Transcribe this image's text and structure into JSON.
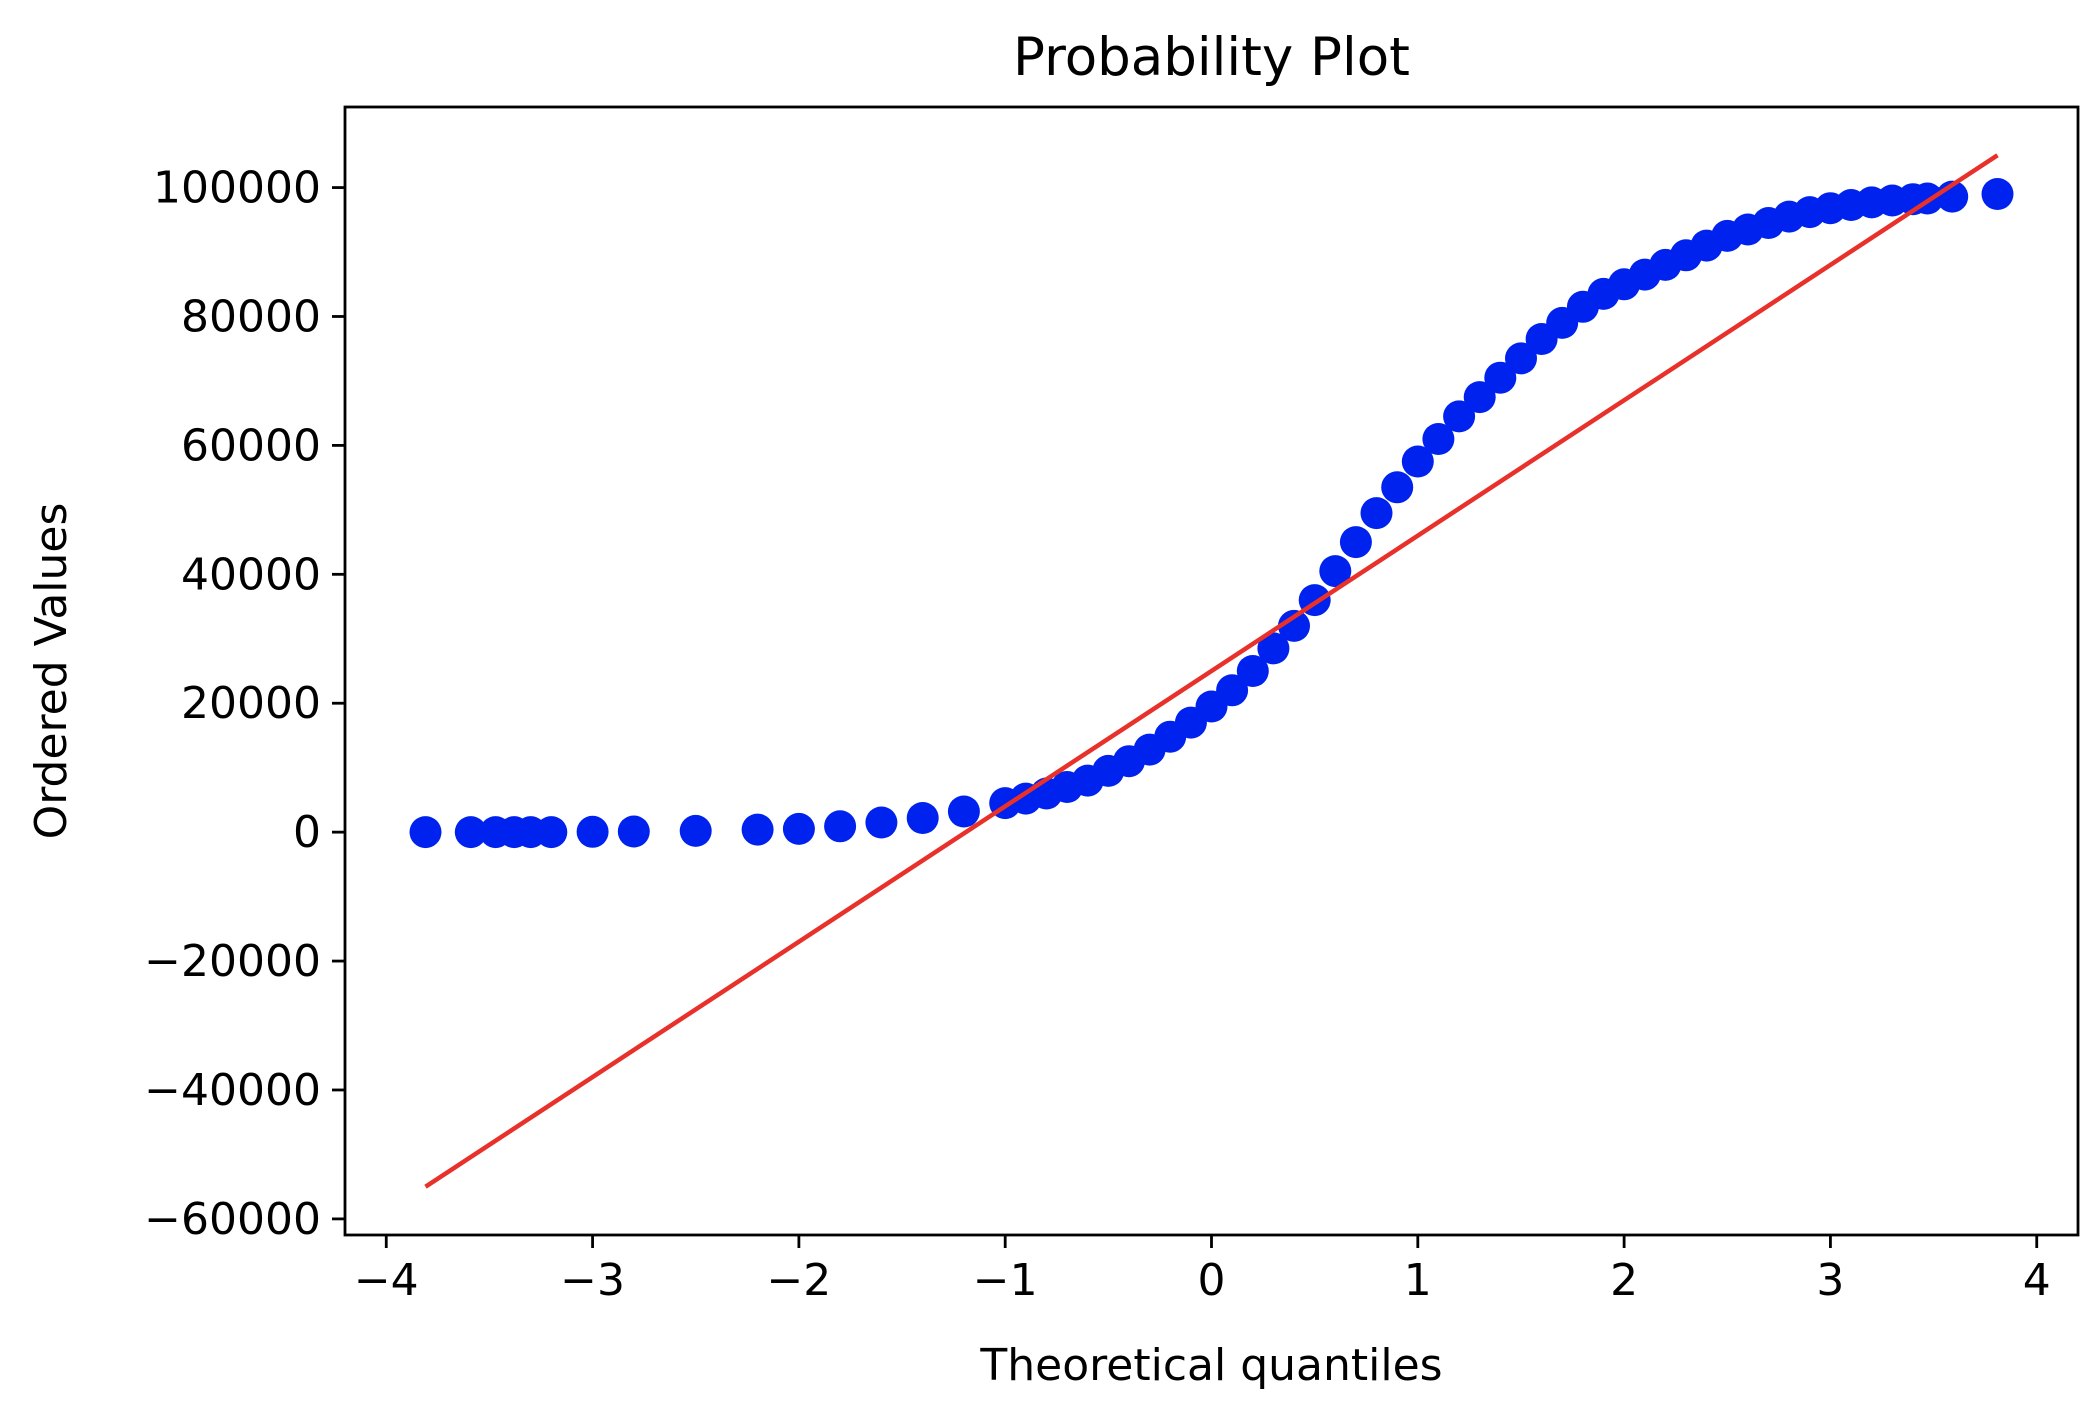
{
  "chart_data": {
    "type": "scatter",
    "title": "Probability Plot",
    "xlabel": "Theoretical quantiles",
    "ylabel": "Ordered Values",
    "xlim": [
      -4.2,
      4.2
    ],
    "ylim": [
      -62500,
      112500
    ],
    "x_ticks": [
      -4,
      -3,
      -2,
      -1,
      0,
      1,
      2,
      3,
      4
    ],
    "x_tick_labels": [
      "−4",
      "−3",
      "−2",
      "−1",
      "0",
      "1",
      "2",
      "3",
      "4"
    ],
    "y_ticks": [
      -60000,
      -40000,
      -20000,
      0,
      20000,
      40000,
      60000,
      80000,
      100000
    ],
    "y_tick_labels": [
      "−60000",
      "−40000",
      "−20000",
      "0",
      "20000",
      "40000",
      "60000",
      "80000",
      "100000"
    ],
    "grid": false,
    "series": [
      {
        "marker_color": "#0022ee",
        "x": [
          -3.81,
          -3.59,
          -3.47,
          -3.38,
          -3.3,
          -3.2,
          -3.0,
          -2.8,
          -2.5,
          -2.2,
          -2.0,
          -1.8,
          -1.6,
          -1.4,
          -1.2,
          -1.0,
          -0.9,
          -0.8,
          -0.7,
          -0.6,
          -0.5,
          -0.4,
          -0.3,
          -0.2,
          -0.1,
          0.0,
          0.1,
          0.2,
          0.3,
          0.4,
          0.5,
          0.6,
          0.7,
          0.8,
          0.9,
          1.0,
          1.1,
          1.2,
          1.3,
          1.4,
          1.5,
          1.6,
          1.7,
          1.8,
          1.9,
          2.0,
          2.1,
          2.2,
          2.3,
          2.4,
          2.5,
          2.6,
          2.7,
          2.8,
          2.9,
          3.0,
          3.1,
          3.2,
          3.3,
          3.4,
          3.47,
          3.59,
          3.81
        ],
        "y": [
          0,
          0,
          0,
          0,
          0,
          0,
          50,
          100,
          200,
          400,
          500,
          900,
          1500,
          2200,
          3200,
          4500,
          5200,
          6000,
          7000,
          8000,
          9500,
          11000,
          12800,
          14800,
          17000,
          19500,
          22000,
          25000,
          28500,
          32000,
          36000,
          40500,
          45000,
          49500,
          53500,
          57500,
          61000,
          64500,
          67500,
          70500,
          73500,
          76500,
          79000,
          81500,
          83500,
          85000,
          86500,
          88000,
          89500,
          91000,
          92500,
          93500,
          94500,
          95500,
          96200,
          96800,
          97300,
          97700,
          98000,
          98200,
          98300,
          98600,
          99000
        ]
      },
      {
        "line_color": "#e8312a",
        "x": [
          -3.81,
          3.81
        ],
        "y": [
          -55000,
          105000
        ]
      }
    ]
  }
}
